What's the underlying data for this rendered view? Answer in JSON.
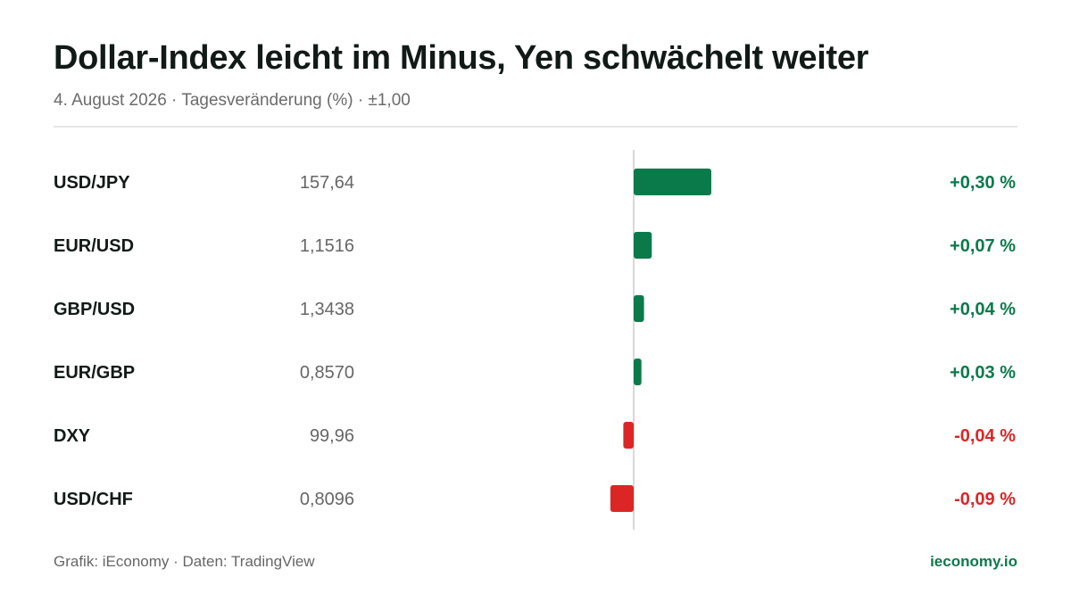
{
  "header": {
    "title": "Dollar-Index leicht im Minus, Yen schwächelt weiter",
    "subtitle": "4. August 2026 · Tagesveränderung (%) · ±1,00"
  },
  "colors": {
    "positive": "#0b7a4b",
    "negative": "#dc2626",
    "axis": "#d9d9d9"
  },
  "chart_data": {
    "type": "bar",
    "orientation": "horizontal",
    "xlim": [
      -1.0,
      1.0
    ],
    "rows": [
      {
        "pair": "USD/JPY",
        "rate": "157,64",
        "change": 0.3,
        "change_label": "+0,30 %"
      },
      {
        "pair": "EUR/USD",
        "rate": "1,1516",
        "change": 0.07,
        "change_label": "+0,07 %"
      },
      {
        "pair": "GBP/USD",
        "rate": "1,3438",
        "change": 0.04,
        "change_label": "+0,04 %"
      },
      {
        "pair": "EUR/GBP",
        "rate": "0,8570",
        "change": 0.03,
        "change_label": "+0,03 %"
      },
      {
        "pair": "DXY",
        "rate": "99,96",
        "change": -0.04,
        "change_label": "-0,04 %"
      },
      {
        "pair": "USD/CHF",
        "rate": "0,8096",
        "change": -0.09,
        "change_label": "-0,09 %"
      }
    ]
  },
  "footer": {
    "source": "Grafik: iEconomy · Daten: TradingView",
    "brand": "ieconomy.io"
  }
}
